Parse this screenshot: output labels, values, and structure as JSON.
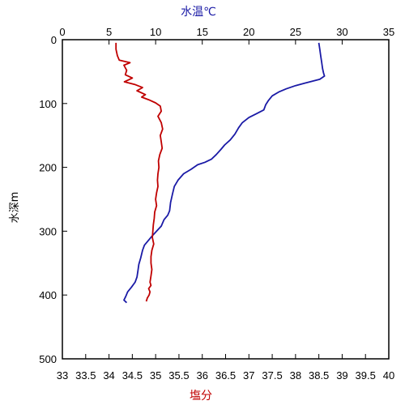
{
  "chart_data": {
    "type": "line",
    "top_axis": {
      "label": "水温℃",
      "range": [
        0,
        35
      ],
      "ticks": [
        "0",
        "5",
        "10",
        "15",
        "20",
        "25",
        "30",
        "35"
      ],
      "color": "#1a1aa6"
    },
    "bottom_axis": {
      "label": "塩分",
      "range": [
        33,
        40
      ],
      "ticks": [
        "33",
        "33.5",
        "34",
        "34.5",
        "35",
        "35.5",
        "36",
        "36.5",
        "37",
        "37.5",
        "38",
        "38.5",
        "39",
        "39.5",
        "40"
      ],
      "color": "#c00000"
    },
    "left_axis": {
      "label": "水深m",
      "range": [
        0,
        500
      ],
      "inverted": true,
      "ticks": [
        "0",
        "100",
        "200",
        "300",
        "400",
        "500"
      ]
    },
    "series": [
      {
        "axis": "top",
        "color": "#1a1aa6",
        "points": [
          [
            27.5,
            5
          ],
          [
            27.6,
            15
          ],
          [
            27.7,
            25
          ],
          [
            27.8,
            35
          ],
          [
            27.9,
            45
          ],
          [
            28.0,
            52
          ],
          [
            28.1,
            57
          ],
          [
            27.6,
            62
          ],
          [
            26.0,
            68
          ],
          [
            25.0,
            72
          ],
          [
            24.0,
            77
          ],
          [
            23.2,
            82
          ],
          [
            22.5,
            88
          ],
          [
            22.1,
            95
          ],
          [
            21.8,
            102
          ],
          [
            21.6,
            110
          ],
          [
            20.8,
            116
          ],
          [
            20.0,
            122
          ],
          [
            19.3,
            130
          ],
          [
            18.9,
            138
          ],
          [
            18.5,
            148
          ],
          [
            18.0,
            157
          ],
          [
            17.4,
            165
          ],
          [
            17.0,
            172
          ],
          [
            16.5,
            180
          ],
          [
            16.0,
            187
          ],
          [
            15.3,
            192
          ],
          [
            14.5,
            196
          ],
          [
            13.8,
            203
          ],
          [
            13.0,
            210
          ],
          [
            12.4,
            220
          ],
          [
            12.0,
            230
          ],
          [
            11.8,
            242
          ],
          [
            11.6,
            255
          ],
          [
            11.5,
            268
          ],
          [
            11.3,
            275
          ],
          [
            10.9,
            282
          ],
          [
            10.6,
            292
          ],
          [
            10.1,
            300
          ],
          [
            9.6,
            308
          ],
          [
            9.2,
            315
          ],
          [
            8.8,
            322
          ],
          [
            8.6,
            330
          ],
          [
            8.4,
            342
          ],
          [
            8.2,
            352
          ],
          [
            8.1,
            362
          ],
          [
            8.0,
            372
          ],
          [
            7.8,
            380
          ],
          [
            7.4,
            388
          ],
          [
            7.0,
            395
          ],
          [
            6.8,
            402
          ],
          [
            6.6,
            408
          ],
          [
            6.9,
            412
          ]
        ]
      },
      {
        "axis": "bottom",
        "color": "#c00000",
        "points": [
          [
            34.15,
            5
          ],
          [
            34.15,
            15
          ],
          [
            34.18,
            25
          ],
          [
            34.22,
            32
          ],
          [
            34.45,
            36
          ],
          [
            34.32,
            40
          ],
          [
            34.38,
            48
          ],
          [
            34.35,
            55
          ],
          [
            34.5,
            60
          ],
          [
            34.42,
            63
          ],
          [
            34.33,
            66
          ],
          [
            34.55,
            70
          ],
          [
            34.72,
            75
          ],
          [
            34.6,
            80
          ],
          [
            34.78,
            86
          ],
          [
            34.7,
            90
          ],
          [
            34.85,
            94
          ],
          [
            35.0,
            99
          ],
          [
            35.1,
            104
          ],
          [
            35.12,
            112
          ],
          [
            35.05,
            120
          ],
          [
            35.12,
            130
          ],
          [
            35.15,
            140
          ],
          [
            35.1,
            150
          ],
          [
            35.12,
            160
          ],
          [
            35.14,
            170
          ],
          [
            35.09,
            180
          ],
          [
            35.06,
            190
          ],
          [
            35.07,
            200
          ],
          [
            35.05,
            210
          ],
          [
            35.04,
            220
          ],
          [
            35.05,
            230
          ],
          [
            35.02,
            240
          ],
          [
            35.0,
            250
          ],
          [
            35.02,
            260
          ],
          [
            34.98,
            270
          ],
          [
            34.97,
            280
          ],
          [
            34.95,
            290
          ],
          [
            34.94,
            300
          ],
          [
            34.93,
            310
          ],
          [
            34.96,
            320
          ],
          [
            34.92,
            330
          ],
          [
            34.9,
            340
          ],
          [
            34.9,
            350
          ],
          [
            34.92,
            360
          ],
          [
            34.9,
            370
          ],
          [
            34.88,
            380
          ],
          [
            34.9,
            385
          ],
          [
            34.85,
            390
          ],
          [
            34.88,
            395
          ],
          [
            34.86,
            400
          ],
          [
            34.82,
            405
          ],
          [
            34.8,
            410
          ]
        ]
      }
    ],
    "grid": false
  }
}
